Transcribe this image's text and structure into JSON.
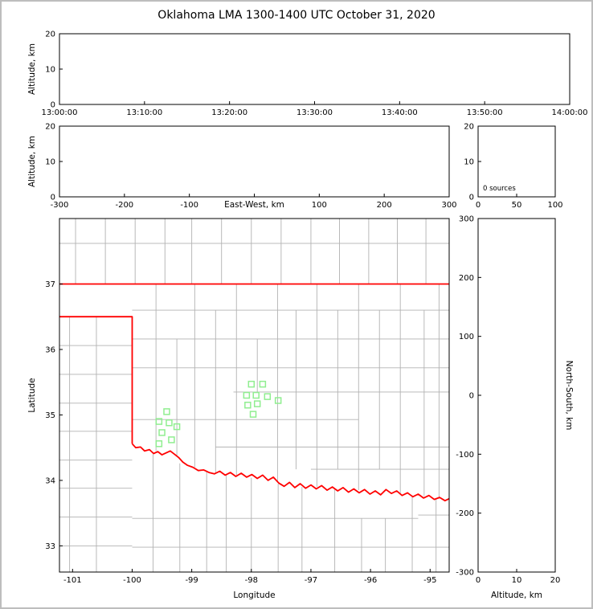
{
  "figure": {
    "title": "Oklahoma LMA 1300-1400 UTC October 31, 2020",
    "background": "#ffffff",
    "border_color": "#bdbdbd"
  },
  "colors": {
    "axis": "#000000",
    "text": "#000000",
    "county_line": "#b2b2b2",
    "state_border": "#ff0000",
    "station_marker": "#90ee90"
  },
  "chart_data": [
    {
      "id": "time_height",
      "name": "time-height-panel",
      "type": "scatter",
      "points": [],
      "x": {
        "label": "",
        "range": [
          0,
          3600
        ],
        "ticks": [
          {
            "v": 0,
            "l": "13:00:00"
          },
          {
            "v": 600,
            "l": "13:10:00"
          },
          {
            "v": 1200,
            "l": "13:20:00"
          },
          {
            "v": 1800,
            "l": "13:30:00"
          },
          {
            "v": 2400,
            "l": "13:40:00"
          },
          {
            "v": 3000,
            "l": "13:50:00"
          },
          {
            "v": 3600,
            "l": "14:00:00"
          }
        ]
      },
      "y": {
        "label": "Altitude, km",
        "range": [
          0,
          20
        ],
        "ticks": [
          {
            "v": 0,
            "l": "0"
          },
          {
            "v": 10,
            "l": "10"
          },
          {
            "v": 20,
            "l": "20"
          }
        ]
      }
    },
    {
      "id": "ew_height",
      "name": "eastwest-height-panel",
      "type": "scatter",
      "points": [],
      "x": {
        "inline_label": "East-West, km",
        "range": [
          -300,
          300
        ],
        "ticks": [
          {
            "v": -300,
            "l": "-300"
          },
          {
            "v": -200,
            "l": "-200"
          },
          {
            "v": -100,
            "l": "-100"
          },
          {
            "v": 0,
            "l": ""
          },
          {
            "v": 100,
            "l": "100"
          },
          {
            "v": 200,
            "l": "200"
          },
          {
            "v": 300,
            "l": "300"
          }
        ]
      },
      "y": {
        "label": "Altitude, km",
        "range": [
          0,
          20
        ],
        "ticks": [
          {
            "v": 0,
            "l": "0"
          },
          {
            "v": 10,
            "l": "10"
          },
          {
            "v": 20,
            "l": "20"
          }
        ]
      }
    },
    {
      "id": "alt_hist",
      "name": "altitude-histogram-panel",
      "type": "histogram",
      "annotation": "0 sources",
      "points": [],
      "x": {
        "range": [
          0,
          100
        ],
        "ticks": [
          {
            "v": 0,
            "l": "0"
          },
          {
            "v": 50,
            "l": "50"
          },
          {
            "v": 100,
            "l": "100"
          }
        ]
      },
      "y": {
        "range": [
          0,
          20
        ],
        "ticks": [
          {
            "v": 0,
            "l": "0"
          },
          {
            "v": 10,
            "l": "10"
          },
          {
            "v": 20,
            "l": "20"
          }
        ]
      }
    },
    {
      "id": "map",
      "name": "plan-view-map-panel",
      "type": "map",
      "x": {
        "label": "Longitude",
        "range": [
          -101.22,
          -94.68
        ],
        "ticks": [
          {
            "v": -101,
            "l": "-101"
          },
          {
            "v": -100,
            "l": "-100"
          },
          {
            "v": -99,
            "l": "-99"
          },
          {
            "v": -98,
            "l": "-98"
          },
          {
            "v": -97,
            "l": "-97"
          },
          {
            "v": -96,
            "l": "-96"
          },
          {
            "v": -95,
            "l": "-95"
          }
        ]
      },
      "y": {
        "label": "Latitude",
        "range": [
          32.6,
          38.0
        ],
        "ticks": [
          {
            "v": 33,
            "l": "33"
          },
          {
            "v": 34,
            "l": "34"
          },
          {
            "v": 35,
            "l": "35"
          },
          {
            "v": 36,
            "l": "36"
          },
          {
            "v": 37,
            "l": "37"
          }
        ]
      },
      "stations": [
        [
          -98.0,
          35.47
        ],
        [
          -97.81,
          35.47
        ],
        [
          -98.08,
          35.3
        ],
        [
          -97.92,
          35.3
        ],
        [
          -97.73,
          35.28
        ],
        [
          -98.06,
          35.15
        ],
        [
          -97.9,
          35.17
        ],
        [
          -97.97,
          35.01
        ],
        [
          -97.55,
          35.22
        ],
        [
          -99.42,
          35.05
        ],
        [
          -99.55,
          34.9
        ],
        [
          -99.38,
          34.88
        ],
        [
          -99.25,
          34.82
        ],
        [
          -99.5,
          34.73
        ],
        [
          -99.34,
          34.62
        ],
        [
          -99.55,
          34.56
        ]
      ],
      "state_border": [
        [
          [
            -101.22,
            37.0
          ],
          [
            -94.68,
            37.0
          ]
        ],
        [
          [
            -101.22,
            36.5
          ],
          [
            -100.0,
            36.5
          ],
          [
            -100.0,
            34.56
          ]
        ],
        [
          [
            -100.0,
            34.56
          ],
          [
            -99.94,
            34.5
          ],
          [
            -99.86,
            34.51
          ],
          [
            -99.79,
            34.45
          ],
          [
            -99.71,
            34.47
          ],
          [
            -99.64,
            34.41
          ],
          [
            -99.57,
            34.44
          ],
          [
            -99.5,
            34.39
          ],
          [
            -99.43,
            34.42
          ],
          [
            -99.36,
            34.45
          ],
          [
            -99.29,
            34.4
          ],
          [
            -99.22,
            34.35
          ],
          [
            -99.15,
            34.28
          ],
          [
            -99.07,
            34.23
          ],
          [
            -98.98,
            34.2
          ],
          [
            -98.89,
            34.15
          ],
          [
            -98.8,
            34.16
          ],
          [
            -98.71,
            34.12
          ],
          [
            -98.62,
            34.1
          ],
          [
            -98.53,
            34.14
          ],
          [
            -98.44,
            34.08
          ],
          [
            -98.35,
            34.12
          ],
          [
            -98.26,
            34.06
          ],
          [
            -98.17,
            34.11
          ],
          [
            -98.08,
            34.05
          ],
          [
            -97.99,
            34.09
          ],
          [
            -97.9,
            34.03
          ],
          [
            -97.81,
            34.08
          ],
          [
            -97.72,
            34.0
          ],
          [
            -97.63,
            34.05
          ],
          [
            -97.54,
            33.96
          ],
          [
            -97.45,
            33.91
          ],
          [
            -97.36,
            33.97
          ],
          [
            -97.27,
            33.89
          ],
          [
            -97.18,
            33.95
          ],
          [
            -97.09,
            33.88
          ],
          [
            -97.0,
            33.93
          ],
          [
            -96.91,
            33.87
          ],
          [
            -96.82,
            33.92
          ],
          [
            -96.73,
            33.85
          ],
          [
            -96.64,
            33.9
          ],
          [
            -96.55,
            33.84
          ],
          [
            -96.46,
            33.89
          ],
          [
            -96.37,
            33.82
          ],
          [
            -96.28,
            33.87
          ],
          [
            -96.19,
            33.81
          ],
          [
            -96.1,
            33.86
          ],
          [
            -96.01,
            33.79
          ],
          [
            -95.92,
            33.84
          ],
          [
            -95.83,
            33.78
          ],
          [
            -95.74,
            33.86
          ],
          [
            -95.65,
            33.8
          ],
          [
            -95.56,
            33.84
          ],
          [
            -95.47,
            33.77
          ],
          [
            -95.38,
            33.81
          ],
          [
            -95.29,
            33.75
          ],
          [
            -95.2,
            33.79
          ],
          [
            -95.11,
            33.73
          ],
          [
            -95.02,
            33.77
          ],
          [
            -94.93,
            33.71
          ],
          [
            -94.84,
            33.74
          ],
          [
            -94.75,
            33.69
          ],
          [
            -94.68,
            33.72
          ]
        ]
      ],
      "county_segments": [
        [
          -100.95,
          37,
          -100.95,
          38
        ],
        [
          -100.45,
          37,
          -100.45,
          38
        ],
        [
          -99.95,
          37,
          -99.95,
          38
        ],
        [
          -99.45,
          37,
          -99.45,
          38
        ],
        [
          -99.0,
          37,
          -99.0,
          38
        ],
        [
          -98.5,
          37,
          -98.5,
          38
        ],
        [
          -98.0,
          37,
          -98.0,
          38
        ],
        [
          -97.5,
          37,
          -97.5,
          38
        ],
        [
          -97.0,
          37,
          -97.0,
          38
        ],
        [
          -96.52,
          37,
          -96.52,
          38
        ],
        [
          -96.03,
          37,
          -96.03,
          38
        ],
        [
          -95.55,
          37,
          -95.55,
          38
        ],
        [
          -95.07,
          37,
          -95.07,
          38
        ],
        [
          -101.22,
          37.62,
          -94.68,
          37.62
        ],
        [
          -101.22,
          36.06,
          -100,
          36.06
        ],
        [
          -101.22,
          35.62,
          -100,
          35.62
        ],
        [
          -101.22,
          35.18,
          -100,
          35.18
        ],
        [
          -101.22,
          34.75,
          -100,
          34.75
        ],
        [
          -101.22,
          34.31,
          -100,
          34.31
        ],
        [
          -101.22,
          33.88,
          -100,
          33.88
        ],
        [
          -101.22,
          33.44,
          -100,
          33.44
        ],
        [
          -101.22,
          33.0,
          -100,
          33.0
        ],
        [
          -100.6,
          32.6,
          -100.6,
          36.5
        ],
        [
          -101.05,
          32.6,
          -101.05,
          36.5
        ],
        [
          -100,
          33.42,
          -95.2,
          33.42
        ],
        [
          -100,
          32.98,
          -94.68,
          32.98
        ],
        [
          -95.2,
          33.47,
          -94.68,
          33.47
        ],
        [
          -99.65,
          32.6,
          -99.65,
          34.4
        ],
        [
          -99.2,
          32.6,
          -99.2,
          34.26
        ],
        [
          -98.75,
          32.6,
          -98.75,
          34.13
        ],
        [
          -98.42,
          32.6,
          -98.42,
          34.09
        ],
        [
          -98.0,
          32.6,
          -98.0,
          34.04
        ],
        [
          -97.55,
          32.6,
          -97.55,
          33.95
        ],
        [
          -97.15,
          32.6,
          -97.15,
          33.9
        ],
        [
          -96.6,
          32.6,
          -96.6,
          33.86
        ],
        [
          -96.15,
          32.6,
          -96.15,
          33.42
        ],
        [
          -95.75,
          32.6,
          -95.75,
          33.42
        ],
        [
          -95.3,
          32.6,
          -95.3,
          33.77
        ],
        [
          -94.9,
          32.6,
          -94.9,
          33.71
        ],
        [
          -100,
          36.6,
          -94.68,
          36.6
        ],
        [
          -100,
          36.16,
          -94.68,
          36.16
        ],
        [
          -100,
          35.72,
          -94.68,
          35.72
        ],
        [
          -98.3,
          35.35,
          -94.68,
          35.35
        ],
        [
          -100,
          34.93,
          -96.2,
          34.93
        ],
        [
          -98.6,
          34.51,
          -94.68,
          34.51
        ],
        [
          -97.0,
          34.17,
          -94.68,
          34.17
        ],
        [
          -99.6,
          34.45,
          -99.6,
          37.0
        ],
        [
          -99.25,
          34.37,
          -99.25,
          36.16
        ],
        [
          -98.95,
          34.2,
          -98.95,
          37.0
        ],
        [
          -98.6,
          34.12,
          -98.6,
          36.6
        ],
        [
          -98.25,
          34.08,
          -98.25,
          37.0
        ],
        [
          -97.9,
          35.35,
          -97.9,
          36.16
        ],
        [
          -97.56,
          33.97,
          -97.56,
          37.0
        ],
        [
          -97.25,
          34.17,
          -97.25,
          36.6
        ],
        [
          -96.9,
          33.9,
          -96.9,
          37.0
        ],
        [
          -96.55,
          34.17,
          -96.55,
          36.6
        ],
        [
          -96.2,
          33.85,
          -96.2,
          37.0
        ],
        [
          -95.85,
          34.17,
          -95.85,
          36.6
        ],
        [
          -95.5,
          33.8,
          -95.5,
          37.0
        ],
        [
          -95.1,
          33.76,
          -95.1,
          36.6
        ],
        [
          -94.85,
          33.72,
          -94.85,
          37.0
        ]
      ]
    },
    {
      "id": "ns_height",
      "name": "northsouth-height-panel",
      "type": "scatter",
      "points": [],
      "x": {
        "label": "Altitude, km",
        "range": [
          0,
          20
        ],
        "ticks": [
          {
            "v": 0,
            "l": "0"
          },
          {
            "v": 10,
            "l": "10"
          },
          {
            "v": 20,
            "l": "20"
          }
        ]
      },
      "y": {
        "label": "North-South, km",
        "label_side": "right",
        "range": [
          -300,
          300
        ],
        "ticks": [
          {
            "v": 300,
            "l": "300"
          },
          {
            "v": 200,
            "l": "200"
          },
          {
            "v": 100,
            "l": "100"
          },
          {
            "v": 0,
            "l": "0"
          },
          {
            "v": -100,
            "l": "-100"
          },
          {
            "v": -200,
            "l": "-200"
          },
          {
            "v": -300,
            "l": "-300"
          }
        ]
      }
    }
  ]
}
